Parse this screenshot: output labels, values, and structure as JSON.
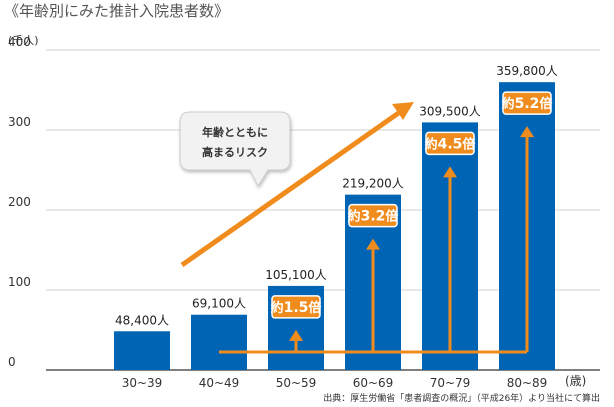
{
  "title": "《年齢別にみた推計入院患者数》",
  "source": "出典：厚生労働省「患者調査の概況」（平成26年）より当社にて算出",
  "callout": {
    "line1": "年齢とともに",
    "line2": "高まるリスク"
  },
  "colors": {
    "bar": "#0064b4",
    "accent": "#f08c1e",
    "axis": "#555555",
    "grid": "#d0d0d0"
  },
  "chart_data": {
    "type": "bar",
    "categories": [
      "30~39",
      "40~49",
      "50~59",
      "60~69",
      "70~79",
      "80~89"
    ],
    "values": [
      48400,
      69100,
      105100,
      219200,
      309500,
      359800
    ],
    "value_labels": [
      "48,400人",
      "69,100人",
      "105,100人",
      "219,200人",
      "309,500人",
      "359,800人"
    ],
    "ratio_labels": [
      {
        "category": "50~59",
        "prefix": "約",
        "value": "1.5",
        "suffix": "倍"
      },
      {
        "category": "60~69",
        "prefix": "約",
        "value": "3.2",
        "suffix": "倍"
      },
      {
        "category": "70~79",
        "prefix": "約",
        "value": "4.5",
        "suffix": "倍"
      },
      {
        "category": "80~89",
        "prefix": "約",
        "value": "5.2",
        "suffix": "倍"
      }
    ],
    "title": "《年齢別にみた推計入院患者数》",
    "ylabel": "(千人)",
    "xlabel": "(歳)",
    "yticks": [
      "0",
      "100",
      "200",
      "300",
      "400"
    ],
    "ylim": [
      0,
      400000
    ],
    "grid": true
  }
}
